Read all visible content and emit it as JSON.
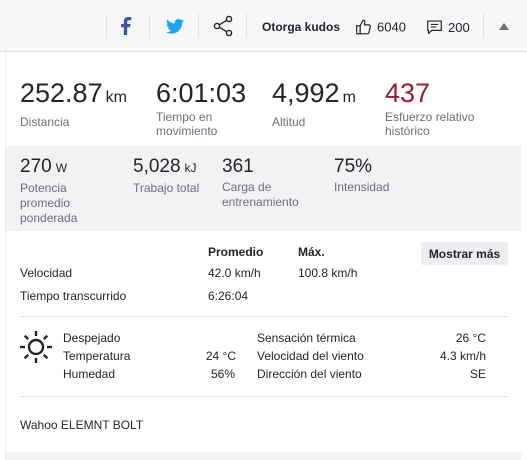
{
  "toolbar": {
    "kudos_label": "Otorga kudos",
    "kudos_count": "6040",
    "comment_count": "200"
  },
  "main_stats": [
    {
      "value": "252.87",
      "unit": "km",
      "label": "Distancia",
      "color": "#242428"
    },
    {
      "value": "6:01:03",
      "unit": "",
      "label": "Tiempo en movimiento",
      "color": "#242428"
    },
    {
      "value": "4,992",
      "unit": "m",
      "label": "Altitud",
      "color": "#242428"
    },
    {
      "value": "437",
      "unit": "",
      "label": "Esfuerzo relativo histórico",
      "color": "#9b1c2c"
    }
  ],
  "secondary_stats": [
    {
      "value": "270",
      "unit": "W",
      "label": "Potencia promedio ponderada"
    },
    {
      "value": "5,028",
      "unit": "kJ",
      "label": "Trabajo total"
    },
    {
      "value": "361",
      "unit": "",
      "label": "Carga de entrenamiento"
    },
    {
      "value": "75%",
      "unit": "",
      "label": "Intensidad"
    }
  ],
  "details": {
    "col_avg": "Promedio",
    "col_max": "Máx.",
    "show_more": "Mostrar más",
    "rows": [
      {
        "label": "Velocidad",
        "avg": "42.0 km/h",
        "max": "100.8 km/h"
      },
      {
        "label": "Tiempo transcurrido",
        "avg": "6:26:04",
        "max": ""
      }
    ]
  },
  "weather": {
    "condition": "Despejado",
    "icon": "sun-icon",
    "temperature_label": "Temperatura",
    "temperature_value": "24 °C",
    "humidity_label": "Humedad",
    "humidity_value": "56%",
    "feels_like_label": "Sensación térmica",
    "feels_like_value": "26 °C",
    "wind_speed_label": "Velocidad del viento",
    "wind_speed_value": "4.3 km/h",
    "wind_dir_label": "Dirección del viento",
    "wind_dir_value": "SE"
  },
  "device": "Wahoo ELEMNT BOLT"
}
